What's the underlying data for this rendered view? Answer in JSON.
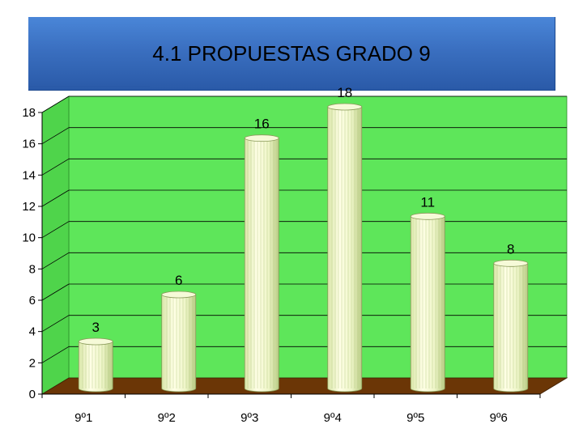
{
  "title": "4.1 PROPUESTAS  GRADO 9",
  "chart_data": {
    "type": "bar",
    "categories": [
      "9º1",
      "9º2",
      "9º3",
      "9º4",
      "9º5",
      "9º6"
    ],
    "values": [
      3,
      6,
      16,
      18,
      11,
      8
    ],
    "ylim": [
      0,
      18
    ],
    "yticks": [
      0,
      2,
      4,
      6,
      8,
      10,
      12,
      14,
      16,
      18
    ],
    "grid": true,
    "colors": {
      "plot_back": "#5ee65a",
      "plot_side": "#4fd44b",
      "floor": "#6b3606",
      "bar_light": "#ffffe0",
      "bar_dark": "#b8c98a",
      "grid": "#000000"
    }
  }
}
